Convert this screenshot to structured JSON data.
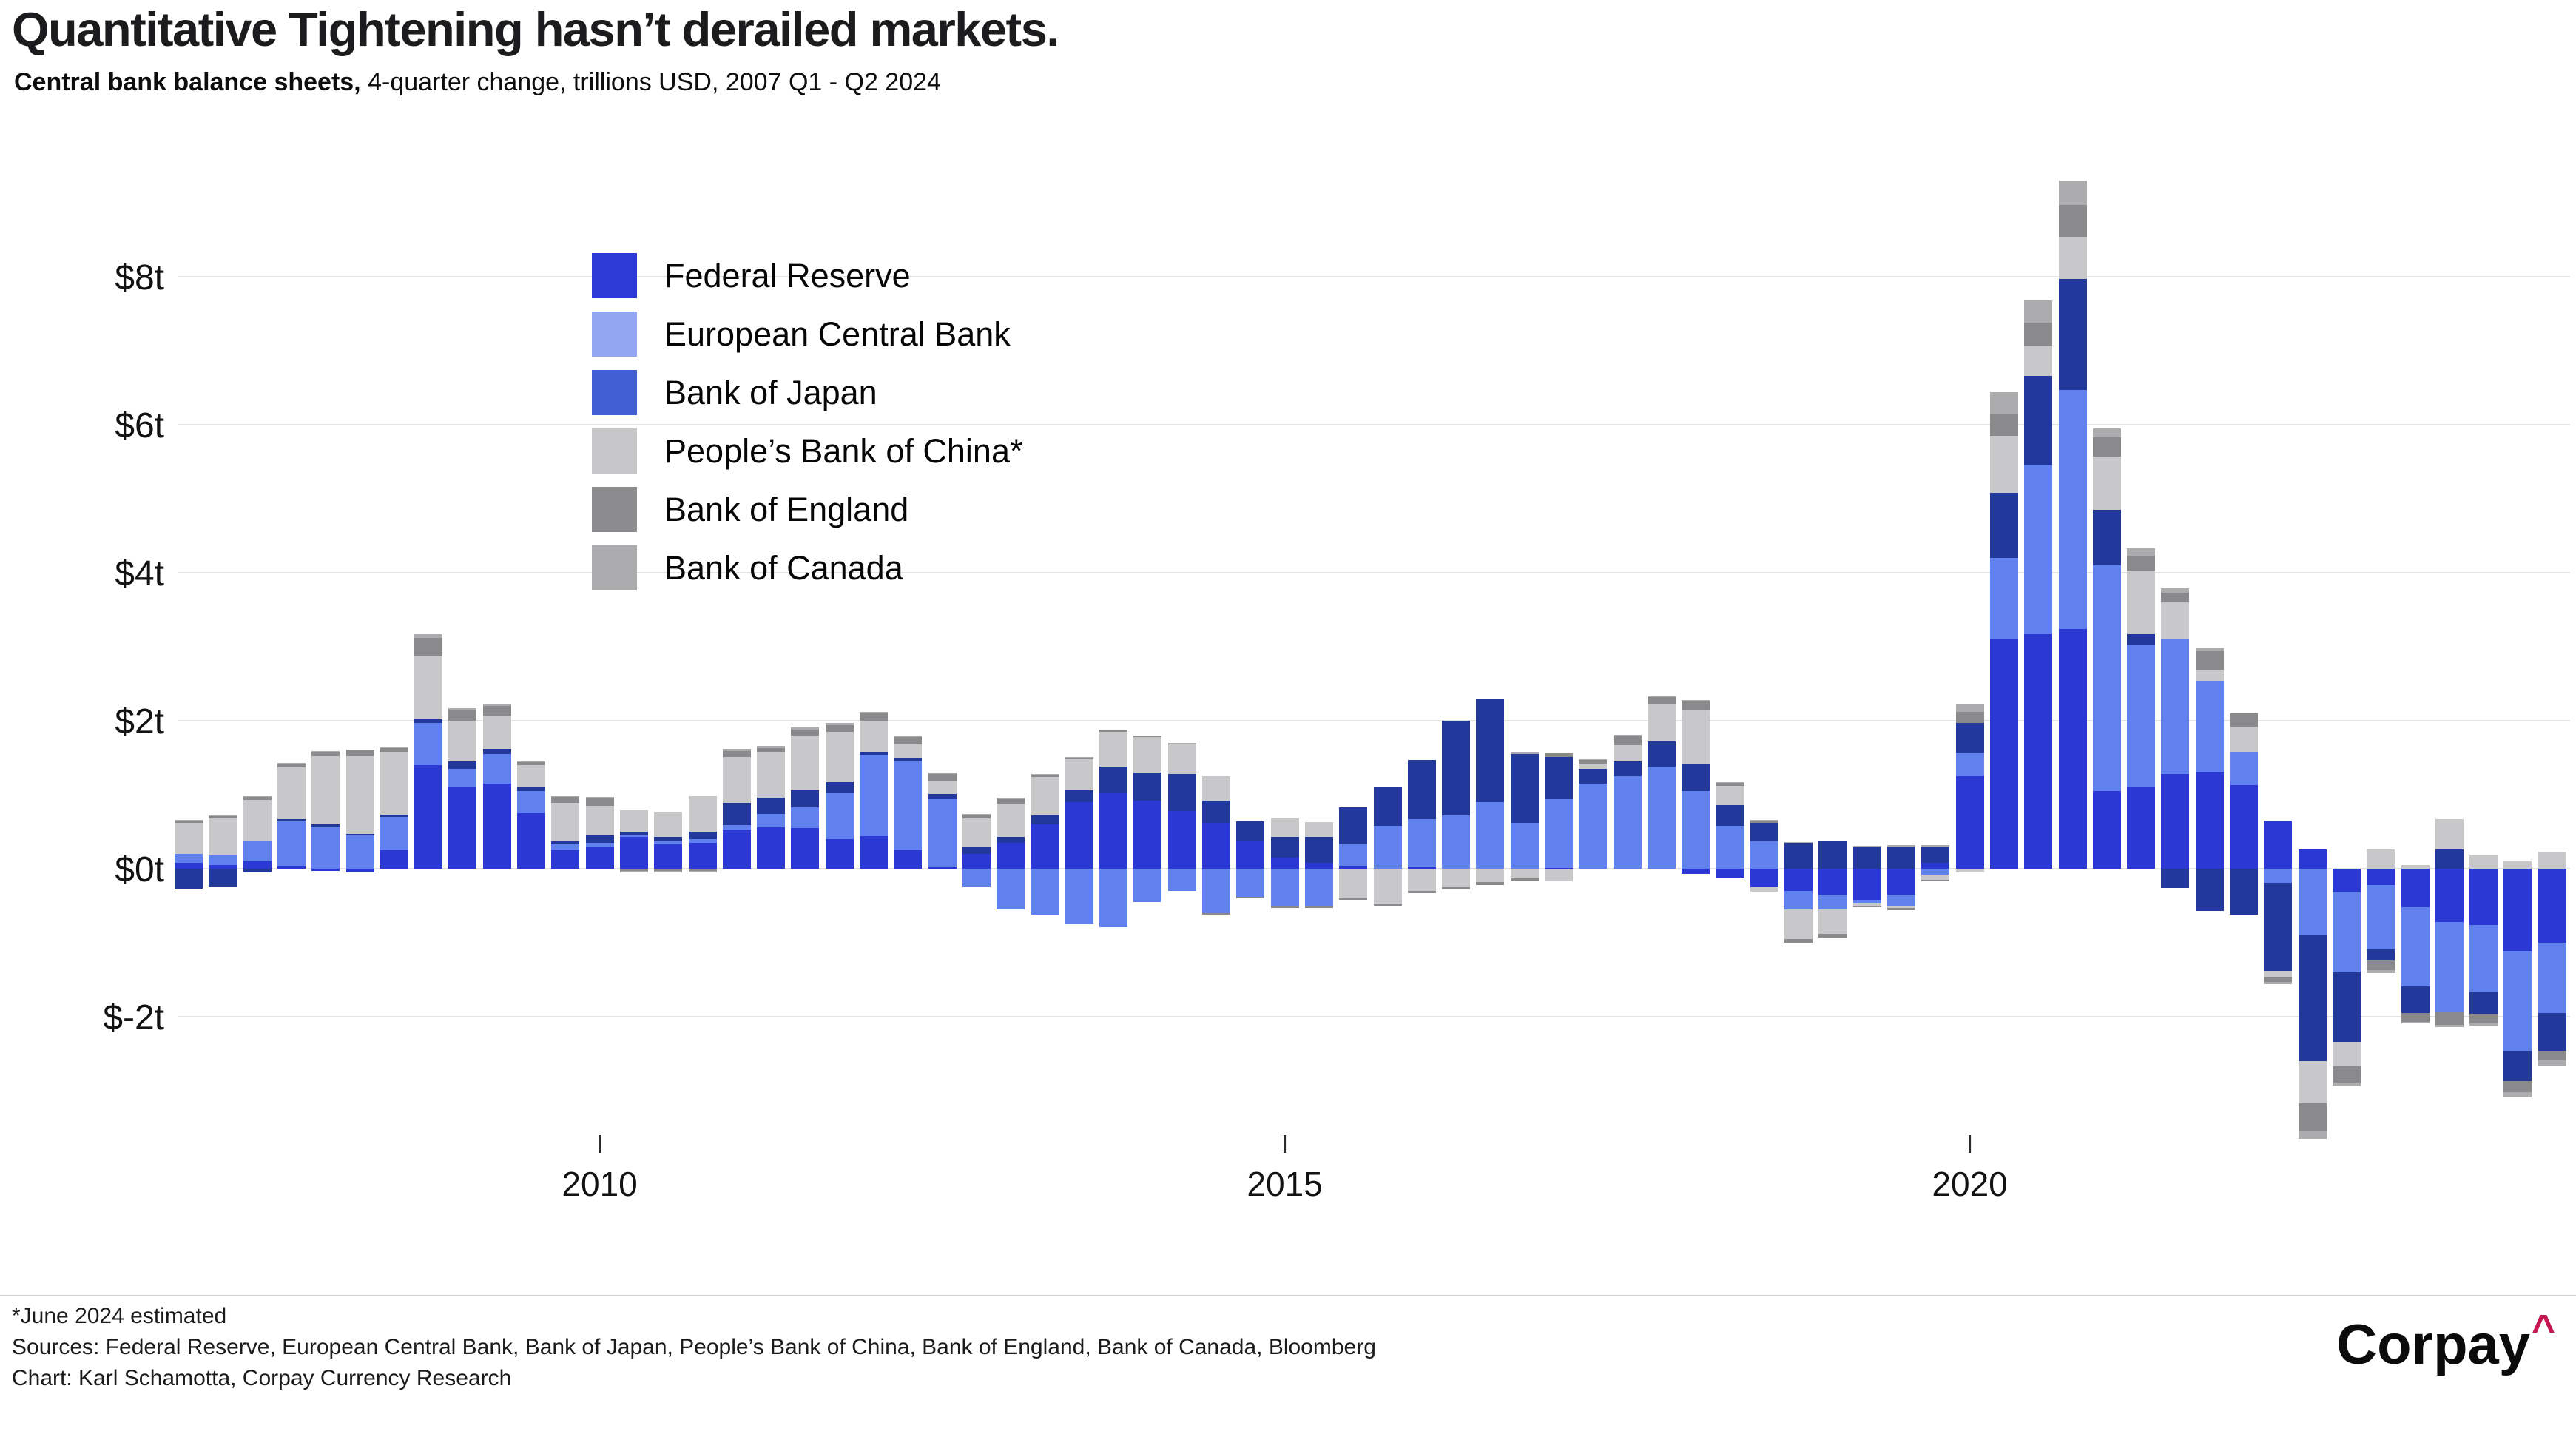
{
  "header": {
    "title": "Quantitative Tightening hasn’t derailed markets.",
    "subtitle_bold": "Central bank balance sheets,",
    "subtitle_rest": " 4-quarter change, trillions USD, 2007 Q1 - Q2 2024"
  },
  "footer": {
    "note": "*June 2024 estimated",
    "sources": "Sources: Federal Reserve, European Central Bank, Bank of Japan, People’s Bank of China, Bank of England, Bank of Canada, Bloomberg",
    "credit": "Chart: Karl Schamotta, Corpay Currency Research"
  },
  "logo": {
    "text": "Corpay",
    "caret": "^",
    "caret_color": "#c31652"
  },
  "chart_data": {
    "type": "bar",
    "stacked": true,
    "title": "Quantitative Tightening hasn’t derailed markets.",
    "subtitle": "Central bank balance sheets, 4-quarter change, trillions USD, 2007 Q1 - Q2 2024",
    "unit": "trillions USD (4-quarter change)",
    "ylim": [
      -3.9,
      9.7
    ],
    "y_gridlines": [
      8,
      6,
      4,
      2,
      0,
      -2
    ],
    "y_tick_labels": [
      "$8t",
      "$6t",
      "$4t",
      "$2t",
      "$0t",
      "$-2t"
    ],
    "grid_color": "#e2e2e2",
    "legend_position": "upper-left",
    "x_ticks": [
      {
        "label": "2010",
        "quarter_index": 12
      },
      {
        "label": "2015",
        "quarter_index": 32
      },
      {
        "label": "2020",
        "quarter_index": 52
      }
    ],
    "quarters": [
      "2007 Q1",
      "2007 Q2",
      "2007 Q3",
      "2007 Q4",
      "2008 Q1",
      "2008 Q2",
      "2008 Q3",
      "2008 Q4",
      "2009 Q1",
      "2009 Q2",
      "2009 Q3",
      "2009 Q4",
      "2010 Q1",
      "2010 Q2",
      "2010 Q3",
      "2010 Q4",
      "2011 Q1",
      "2011 Q2",
      "2011 Q3",
      "2011 Q4",
      "2012 Q1",
      "2012 Q2",
      "2012 Q3",
      "2012 Q4",
      "2013 Q1",
      "2013 Q2",
      "2013 Q3",
      "2013 Q4",
      "2014 Q1",
      "2014 Q2",
      "2014 Q3",
      "2014 Q4",
      "2015 Q1",
      "2015 Q2",
      "2015 Q3",
      "2015 Q4",
      "2016 Q1",
      "2016 Q2",
      "2016 Q3",
      "2016 Q4",
      "2017 Q1",
      "2017 Q2",
      "2017 Q3",
      "2017 Q4",
      "2018 Q1",
      "2018 Q2",
      "2018 Q3",
      "2018 Q4",
      "2019 Q1",
      "2019 Q2",
      "2019 Q3",
      "2019 Q4",
      "2020 Q1",
      "2020 Q2",
      "2020 Q3",
      "2020 Q4",
      "2021 Q1",
      "2021 Q2",
      "2021 Q3",
      "2021 Q4",
      "2022 Q1",
      "2022 Q2",
      "2022 Q3",
      "2022 Q4",
      "2023 Q1",
      "2023 Q2",
      "2023 Q3",
      "2023 Q4",
      "2024 Q1",
      "2024 Q2"
    ],
    "series": [
      {
        "key": "fed",
        "name": "Federal Reserve",
        "color": "#2B38D3",
        "legend_color": "#2C3AD6",
        "values": [
          0.08,
          0.05,
          0.1,
          0.03,
          -0.03,
          -0.05,
          0.25,
          1.4,
          1.1,
          1.15,
          0.75,
          0.25,
          0.3,
          0.43,
          0.33,
          0.35,
          0.52,
          0.56,
          0.55,
          0.4,
          0.44,
          0.25,
          0.02,
          0.2,
          0.35,
          0.6,
          0.9,
          1.02,
          0.92,
          0.78,
          0.62,
          0.38,
          0.15,
          0.08,
          0.03,
          0.0,
          0.02,
          0.0,
          0.0,
          0.0,
          0.01,
          0.0,
          0.0,
          0.0,
          -0.07,
          -0.12,
          -0.25,
          -0.3,
          -0.35,
          -0.42,
          -0.35,
          0.08,
          1.25,
          3.1,
          3.17,
          3.24,
          1.05,
          1.1,
          1.28,
          1.31,
          1.13,
          0.65,
          0.26,
          -0.31,
          -0.22,
          -0.52,
          -0.72,
          -0.76,
          -1.11,
          -1.0
        ]
      },
      {
        "key": "ecb",
        "name": "European Central Bank",
        "color": "#6181EE",
        "legend_color": "#93A6F2",
        "values": [
          0.12,
          0.13,
          0.28,
          0.62,
          0.57,
          0.45,
          0.45,
          0.57,
          0.25,
          0.4,
          0.3,
          0.08,
          0.05,
          0.02,
          0.04,
          0.05,
          0.07,
          0.18,
          0.28,
          0.62,
          1.1,
          1.2,
          0.92,
          -0.25,
          -0.55,
          -0.62,
          -0.75,
          -0.79,
          -0.45,
          -0.3,
          -0.6,
          -0.38,
          -0.5,
          -0.5,
          0.3,
          0.58,
          0.65,
          0.72,
          0.9,
          0.62,
          0.93,
          1.15,
          1.25,
          1.38,
          1.05,
          0.58,
          0.37,
          -0.25,
          -0.2,
          -0.05,
          -0.15,
          -0.08,
          0.32,
          1.1,
          2.29,
          3.23,
          3.05,
          1.92,
          1.82,
          1.23,
          0.45,
          -0.19,
          -0.9,
          -1.09,
          -0.87,
          -1.07,
          -1.22,
          -0.9,
          -1.35,
          -0.95
        ]
      },
      {
        "key": "boj",
        "name": "Bank of Japan",
        "color": "#22399B",
        "legend_color": "#4160D5",
        "values": [
          -0.27,
          -0.25,
          -0.05,
          0.02,
          0.03,
          0.02,
          0.03,
          0.05,
          0.1,
          0.07,
          0.05,
          0.04,
          0.1,
          0.05,
          0.06,
          0.1,
          0.3,
          0.22,
          0.23,
          0.15,
          0.04,
          0.05,
          0.07,
          0.1,
          0.08,
          0.12,
          0.16,
          0.36,
          0.38,
          0.5,
          0.3,
          0.26,
          0.28,
          0.35,
          0.5,
          0.52,
          0.8,
          1.28,
          1.4,
          0.93,
          0.57,
          0.2,
          0.2,
          0.34,
          0.37,
          0.28,
          0.25,
          0.35,
          0.38,
          0.3,
          0.3,
          0.22,
          0.4,
          0.88,
          1.2,
          1.5,
          0.75,
          0.15,
          -0.26,
          -0.57,
          -0.62,
          -1.19,
          -1.7,
          -0.94,
          -0.15,
          -0.36,
          0.26,
          -0.3,
          -0.41,
          -0.51
        ]
      },
      {
        "key": "pboc",
        "name": "People’s Bank of China*",
        "color": "#C8C8CA",
        "legend_color": "#C6C6C8",
        "values": [
          0.42,
          0.5,
          0.55,
          0.7,
          0.92,
          1.05,
          0.85,
          0.85,
          0.55,
          0.45,
          0.3,
          0.52,
          0.4,
          0.3,
          0.33,
          0.48,
          0.62,
          0.62,
          0.74,
          0.68,
          0.42,
          0.18,
          0.17,
          0.38,
          0.45,
          0.52,
          0.42,
          0.47,
          0.48,
          0.4,
          0.33,
          0.0,
          0.25,
          0.2,
          -0.4,
          -0.48,
          -0.3,
          -0.25,
          -0.18,
          -0.12,
          -0.17,
          0.07,
          0.22,
          0.5,
          0.72,
          0.26,
          -0.06,
          -0.4,
          -0.33,
          -0.03,
          -0.03,
          -0.07,
          -0.05,
          0.77,
          0.41,
          0.57,
          0.72,
          0.86,
          0.51,
          0.15,
          0.34,
          -0.08,
          -0.57,
          -0.33,
          0.26,
          0.05,
          0.41,
          0.18,
          0.11,
          0.23
        ]
      },
      {
        "key": "boe",
        "name": "Bank of England",
        "color": "#8A8A8C",
        "legend_color": "#8C8C8E",
        "values": [
          0.03,
          0.03,
          0.04,
          0.05,
          0.06,
          0.08,
          0.05,
          0.25,
          0.15,
          0.13,
          0.04,
          0.08,
          0.1,
          -0.03,
          -0.03,
          -0.03,
          0.08,
          0.05,
          0.08,
          0.09,
          0.1,
          0.1,
          0.1,
          0.05,
          0.06,
          0.03,
          0.02,
          0.02,
          0.01,
          0.01,
          -0.02,
          -0.02,
          -0.03,
          -0.03,
          -0.02,
          -0.02,
          -0.03,
          -0.03,
          -0.04,
          -0.04,
          0.05,
          0.05,
          0.13,
          0.1,
          0.12,
          0.04,
          0.03,
          -0.05,
          -0.05,
          -0.02,
          -0.03,
          -0.02,
          0.15,
          0.29,
          0.31,
          0.43,
          0.26,
          0.2,
          0.12,
          0.25,
          0.18,
          -0.07,
          -0.37,
          -0.22,
          -0.13,
          -0.12,
          -0.17,
          -0.12,
          -0.15,
          -0.13
        ]
      },
      {
        "key": "boc",
        "name": "Bank of Canada",
        "color": "#ACACAE",
        "legend_color": "#ABABAD",
        "values": [
          0.01,
          0.01,
          0.01,
          0.01,
          0.01,
          0.01,
          0.01,
          0.05,
          0.02,
          0.02,
          0.01,
          0.01,
          0.02,
          -0.02,
          -0.02,
          -0.02,
          0.03,
          0.03,
          0.04,
          0.03,
          0.02,
          0.02,
          0.02,
          0.01,
          0.02,
          0.01,
          0.01,
          0.01,
          0.01,
          0.01,
          0.0,
          0.0,
          0.0,
          0.0,
          0.0,
          0.0,
          0.0,
          0.0,
          0.0,
          0.03,
          0.01,
          0.01,
          0.01,
          0.01,
          0.02,
          0.01,
          0.01,
          0.01,
          0.0,
          0.01,
          0.02,
          0.02,
          0.1,
          0.3,
          0.3,
          0.33,
          0.12,
          0.1,
          0.06,
          0.04,
          0.0,
          -0.03,
          -0.11,
          -0.04,
          -0.04,
          -0.02,
          -0.03,
          -0.04,
          -0.07,
          -0.07
        ]
      }
    ]
  }
}
